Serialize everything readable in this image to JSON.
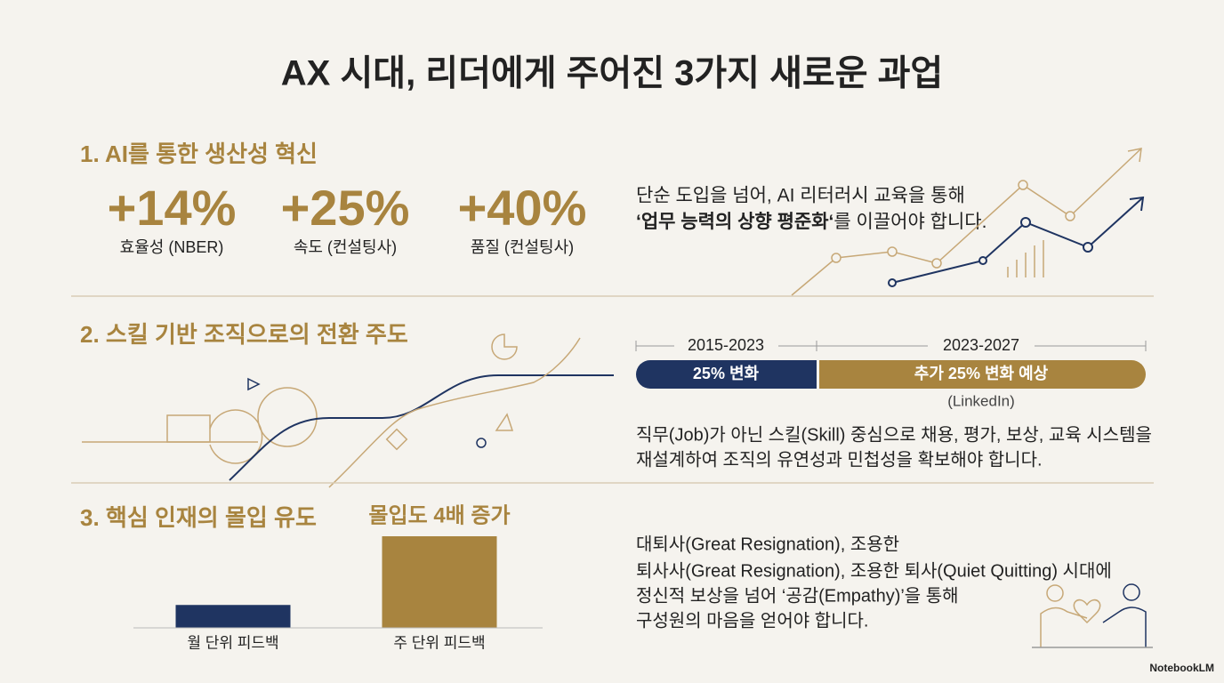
{
  "title": "AX 시대, 리더에게 주어진 3가지 새로운 과업",
  "section1": {
    "heading": "1.  AI를 통한 생산성 혁신",
    "stats": [
      {
        "value": "+14%",
        "label": "효율성 (NBER)"
      },
      {
        "value": "+25%",
        "label": "속도 (컨설팅사)"
      },
      {
        "value": "+40%",
        "label": "품질 (컨설팅사)"
      }
    ],
    "text_line": "단순 도입을 넘어, AI 리터러시 교육을 통해",
    "text_emphasis": "‘업무 능력의 상향 평준화‘",
    "text_rest": "를 이끌어야 합니다."
  },
  "section2": {
    "heading": "2. 스킬 기반 조직으로의 전환 주도",
    "timeline": [
      {
        "period": "2015-2023",
        "label": "25% 변화"
      },
      {
        "period": "2023-2027",
        "label": "추가 25% 변화 예상"
      }
    ],
    "source": "(LinkedIn)",
    "text_lines": [
      "직무(Job)가 아닌 스킬(Skill) 중심으로 채용, 평가, 보상, 교육 시스템을",
      "재설계하여 조직의 유연성과 민첩성을 확보해야 합니다."
    ]
  },
  "section3": {
    "heading": "3. 핵심 인재의 몰입 유도",
    "chart": {
      "type": "bar",
      "annotation": "몰입도 4배 증가",
      "categories": [
        "월 단위 피드백",
        "주 단위 피드백"
      ],
      "values": [
        1,
        4
      ],
      "colors": [
        "#1f3461",
        "#a8843f"
      ]
    },
    "text_lines": [
      "대퇴사(Great Resignation), 조용한",
      "퇴사사(Great Resignation), 조용한 퇴사(Quiet Quitting) 시대에",
      "정신적 보상을 넘어 ‘공감(Empathy)’을 통해",
      "구성원의 마음을 얻어야 합니다."
    ]
  },
  "footer": "NotebookLM"
}
